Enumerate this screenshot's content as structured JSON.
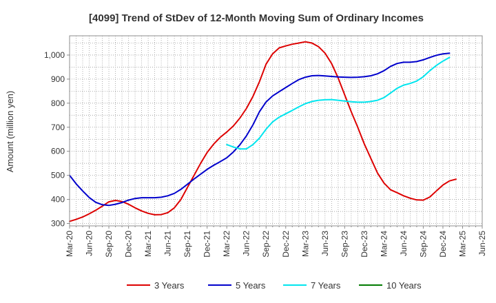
{
  "chart_data": {
    "type": "line",
    "title": "[4099]  Trend of StDev of 12-Month Moving Sum of Ordinary Incomes",
    "xlabel": "",
    "ylabel": "Amount (million yen)",
    "ylim": [
      290,
      1080
    ],
    "yticks": [
      300,
      400,
      500,
      600,
      700,
      800,
      900,
      1000
    ],
    "ytick_labels": [
      "300",
      "400",
      "500",
      "600",
      "700",
      "800",
      "900",
      "1,000"
    ],
    "x_start": "Mar-20",
    "x_end": "Jun-25",
    "xtick_labels": [
      "Mar-20",
      "Jun-20",
      "Sep-20",
      "Dec-20",
      "Mar-21",
      "Jun-21",
      "Sep-21",
      "Dec-21",
      "Mar-22",
      "Jun-22",
      "Sep-22",
      "Dec-22",
      "Mar-23",
      "Jun-23",
      "Sep-23",
      "Dec-23",
      "Mar-24",
      "Jun-24",
      "Sep-24",
      "Dec-24",
      "Mar-25",
      "Jun-25"
    ],
    "grid": true,
    "legend_position": "bottom",
    "series": [
      {
        "name": "3 Years",
        "color": "#dd0000",
        "start_index": 0,
        "values": [
          309,
          317,
          327,
          340,
          355,
          372,
          390,
          396,
          391,
          380,
          365,
          352,
          342,
          336,
          337,
          345,
          365,
          400,
          450,
          500,
          550,
          595,
          630,
          658,
          680,
          705,
          738,
          778,
          828,
          890,
          962,
          1005,
          1030,
          1038,
          1045,
          1050,
          1055,
          1050,
          1035,
          1008,
          965,
          905,
          835,
          765,
          700,
          630,
          570,
          510,
          468,
          440,
          428,
          415,
          405,
          398,
          397,
          410,
          435,
          460,
          477,
          484
        ]
      },
      {
        "name": "5 Years",
        "color": "#0000cc",
        "start_index": 0,
        "values": [
          500,
          465,
          435,
          408,
          388,
          378,
          375,
          380,
          387,
          397,
          404,
          407,
          407,
          407,
          409,
          415,
          425,
          442,
          463,
          485,
          505,
          525,
          542,
          557,
          573,
          597,
          627,
          664,
          710,
          765,
          805,
          830,
          848,
          865,
          882,
          898,
          908,
          914,
          915,
          913,
          911,
          909,
          908,
          907,
          908,
          910,
          914,
          922,
          935,
          953,
          965,
          970,
          970,
          973,
          980,
          990,
          999,
          1005,
          1008
        ]
      },
      {
        "name": "7 Years",
        "color": "#00e5ee",
        "start_index": 24,
        "values": [
          628,
          618,
          610,
          610,
          628,
          655,
          692,
          722,
          742,
          756,
          770,
          785,
          798,
          807,
          812,
          814,
          815,
          812,
          809,
          806,
          804,
          804,
          807,
          812,
          823,
          842,
          862,
          875,
          882,
          892,
          910,
          935,
          957,
          975,
          990
        ]
      },
      {
        "name": "10 Years",
        "color": "#007a00",
        "start_index": 0,
        "values": []
      }
    ]
  }
}
